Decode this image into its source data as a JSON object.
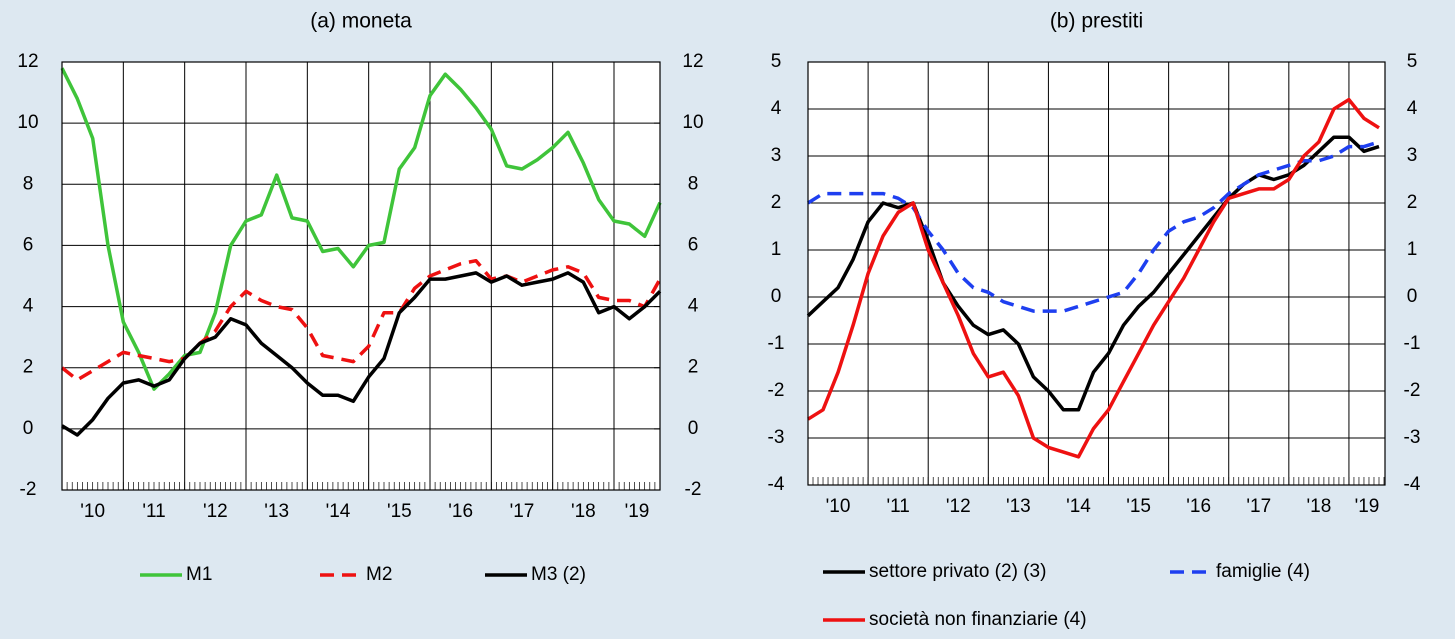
{
  "chart_data": [
    {
      "type": "line",
      "title": "(a) moneta",
      "x": [
        2010,
        2010.25,
        2010.5,
        2010.75,
        2011,
        2011.25,
        2011.5,
        2011.75,
        2012,
        2012.25,
        2012.5,
        2012.75,
        2013,
        2013.25,
        2013.5,
        2013.75,
        2014,
        2014.25,
        2014.5,
        2014.75,
        2015,
        2015.25,
        2015.5,
        2015.75,
        2016,
        2016.25,
        2016.5,
        2016.75,
        2017,
        2017.25,
        2017.5,
        2017.75,
        2018,
        2018.25,
        2018.5,
        2018.75,
        2019,
        2019.25,
        2019.5,
        2019.75
      ],
      "xlim": [
        2010,
        2019.75
      ],
      "xticks": [
        {
          "value": 2010,
          "label": "'10"
        },
        {
          "value": 2011,
          "label": "'11"
        },
        {
          "value": 2012,
          "label": "'12"
        },
        {
          "value": 2013,
          "label": "'13"
        },
        {
          "value": 2014,
          "label": "'14"
        },
        {
          "value": 2015,
          "label": "'15"
        },
        {
          "value": 2016,
          "label": "'16"
        },
        {
          "value": 2017,
          "label": "'17"
        },
        {
          "value": 2018,
          "label": "'18"
        },
        {
          "value": 2019,
          "label": "'19"
        }
      ],
      "ylim": [
        -2,
        12
      ],
      "yticks": [
        {
          "value": -2,
          "label": "-2"
        },
        0,
        2,
        4,
        6,
        8,
        10,
        12
      ],
      "y2lim": [
        -2,
        12
      ],
      "y2ticks": [
        {
          "value": -2,
          "label": "-2"
        },
        0,
        2,
        4,
        6,
        8,
        10,
        12
      ],
      "grid": true,
      "series": [
        {
          "name": "M1",
          "color": "#3fc43a",
          "dash": false,
          "values": [
            11.8,
            10.8,
            9.5,
            6.0,
            3.5,
            2.5,
            1.3,
            1.8,
            2.4,
            2.5,
            3.8,
            6.0,
            6.8,
            7.0,
            8.3,
            6.9,
            6.8,
            5.8,
            5.9,
            5.3,
            6.0,
            6.1,
            8.5,
            9.2,
            10.9,
            11.6,
            11.1,
            10.5,
            9.8,
            8.6,
            8.5,
            8.8,
            9.2,
            9.7,
            8.7,
            7.5,
            6.8,
            6.7,
            6.3,
            7.4
          ]
        },
        {
          "name": "M2",
          "color": "#ee1111",
          "dash": true,
          "values": [
            2.0,
            1.6,
            1.9,
            2.2,
            2.5,
            2.4,
            2.3,
            2.2,
            2.3,
            2.8,
            3.2,
            4.0,
            4.5,
            4.2,
            4.0,
            3.9,
            3.3,
            2.4,
            2.3,
            2.2,
            2.7,
            3.8,
            3.8,
            4.6,
            5.0,
            5.2,
            5.4,
            5.5,
            4.9,
            5.0,
            4.8,
            5.0,
            5.2,
            5.3,
            5.1,
            4.3,
            4.2,
            4.2,
            4.0,
            4.9
          ]
        },
        {
          "name": "M3 (2)",
          "color": "#000000",
          "dash": false,
          "values": [
            0.1,
            -0.2,
            0.3,
            1.0,
            1.5,
            1.6,
            1.4,
            1.6,
            2.3,
            2.8,
            3.0,
            3.6,
            3.4,
            2.8,
            2.4,
            2.0,
            1.5,
            1.1,
            1.1,
            0.9,
            1.7,
            2.3,
            3.8,
            4.3,
            4.9,
            4.9,
            5.0,
            5.1,
            4.8,
            5.0,
            4.7,
            4.8,
            4.9,
            5.1,
            4.8,
            3.8,
            4.0,
            3.6,
            4.0,
            4.5
          ]
        }
      ]
    },
    {
      "type": "line",
      "title": "(b) prestiti",
      "x": [
        2010,
        2010.25,
        2010.5,
        2010.75,
        2011,
        2011.25,
        2011.5,
        2011.75,
        2012,
        2012.25,
        2012.5,
        2012.75,
        2013,
        2013.25,
        2013.5,
        2013.75,
        2014,
        2014.25,
        2014.5,
        2014.75,
        2015,
        2015.25,
        2015.5,
        2015.75,
        2016,
        2016.25,
        2016.5,
        2016.75,
        2017,
        2017.25,
        2017.5,
        2017.75,
        2018,
        2018.25,
        2018.5,
        2018.75,
        2019,
        2019.25,
        2019.5
      ],
      "xlim": [
        2010,
        2019.6
      ],
      "xticks": [
        {
          "value": 2010,
          "label": "'10"
        },
        {
          "value": 2011,
          "label": "'11"
        },
        {
          "value": 2012,
          "label": "'12"
        },
        {
          "value": 2013,
          "label": "'13"
        },
        {
          "value": 2014,
          "label": "'14"
        },
        {
          "value": 2015,
          "label": "'15"
        },
        {
          "value": 2016,
          "label": "'16"
        },
        {
          "value": 2017,
          "label": "'17"
        },
        {
          "value": 2018,
          "label": "'18"
        },
        {
          "value": 2019,
          "label": "'19"
        }
      ],
      "ylim": [
        -4,
        5
      ],
      "yticks": [
        {
          "value": -4,
          "label": "-4"
        },
        {
          "value": -3,
          "label": "-3"
        },
        {
          "value": -2,
          "label": "-2"
        },
        {
          "value": -1,
          "label": "-1"
        },
        0,
        1,
        2,
        3,
        4,
        5
      ],
      "y2lim": [
        -4,
        5
      ],
      "y2ticks": [
        {
          "value": -4,
          "label": "-4"
        },
        {
          "value": -3,
          "label": "-3"
        },
        {
          "value": -2,
          "label": "-2"
        },
        {
          "value": -1,
          "label": "-1"
        },
        0,
        1,
        2,
        3,
        4,
        5
      ],
      "grid": true,
      "series": [
        {
          "name": "settore privato (2) (3)",
          "color": "#000000",
          "dash": false,
          "values": [
            -0.4,
            -0.1,
            0.2,
            0.8,
            1.6,
            2.0,
            1.9,
            2.0,
            1.2,
            0.3,
            -0.2,
            -0.6,
            -0.8,
            -0.7,
            -1.0,
            -1.7,
            -2.0,
            -2.4,
            -2.4,
            -1.6,
            -1.2,
            -0.6,
            -0.2,
            0.1,
            0.5,
            0.9,
            1.3,
            1.7,
            2.1,
            2.4,
            2.6,
            2.5,
            2.6,
            2.8,
            3.1,
            3.4,
            3.4,
            3.1,
            3.2
          ]
        },
        {
          "name": "famiglie (4)",
          "color": "#1e3ff0",
          "dash": true,
          "values": [
            2.0,
            2.2,
            2.2,
            2.2,
            2.2,
            2.2,
            2.1,
            1.9,
            1.4,
            1.0,
            0.5,
            0.2,
            0.1,
            -0.1,
            -0.2,
            -0.3,
            -0.3,
            -0.3,
            -0.2,
            -0.1,
            0.0,
            0.1,
            0.5,
            1.0,
            1.4,
            1.6,
            1.7,
            1.9,
            2.2,
            2.4,
            2.6,
            2.7,
            2.8,
            2.9,
            2.9,
            3.0,
            3.2,
            3.2,
            3.3
          ]
        },
        {
          "name": "società non finanziarie (4)",
          "color": "#ee1111",
          "dash": false,
          "values": [
            -2.6,
            -2.4,
            -1.6,
            -0.6,
            0.5,
            1.3,
            1.8,
            2.0,
            1.0,
            0.3,
            -0.4,
            -1.2,
            -1.7,
            -1.6,
            -2.1,
            -3.0,
            -3.2,
            -3.3,
            -3.4,
            -2.8,
            -2.4,
            -1.8,
            -1.2,
            -0.6,
            -0.1,
            0.4,
            1.0,
            1.6,
            2.1,
            2.2,
            2.3,
            2.3,
            2.5,
            3.0,
            3.3,
            4.0,
            4.2,
            3.8,
            3.6
          ]
        }
      ]
    }
  ]
}
